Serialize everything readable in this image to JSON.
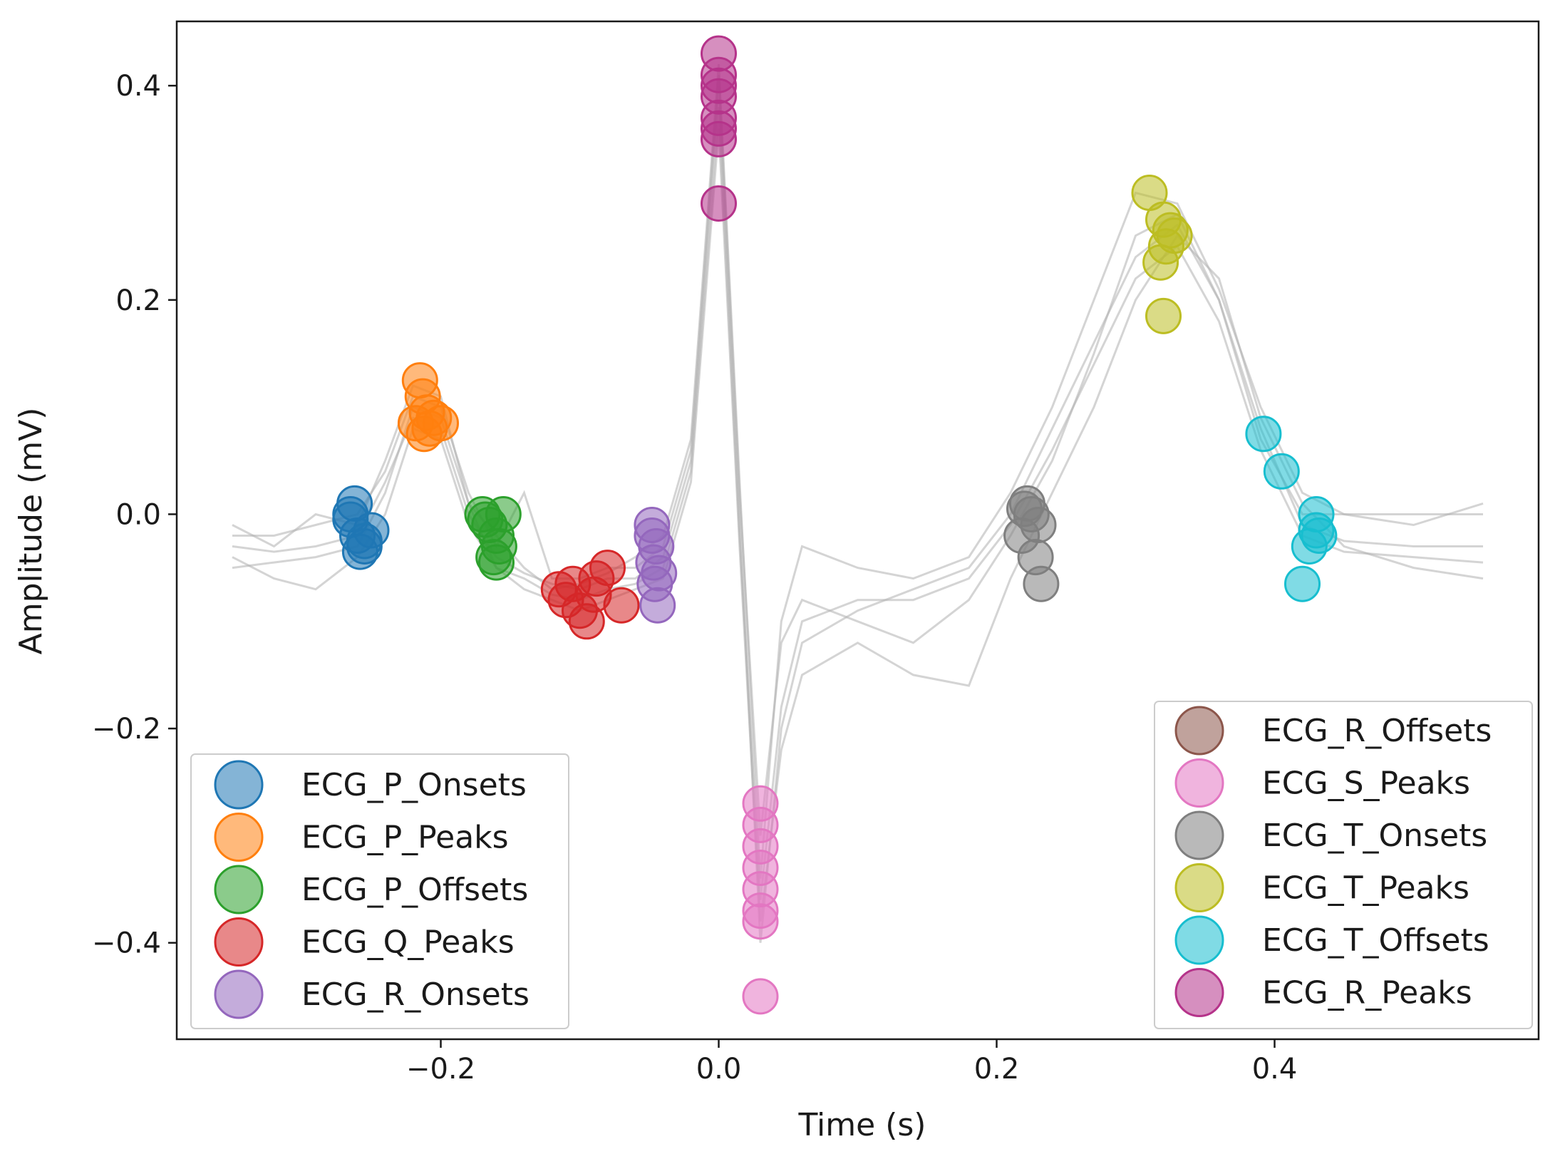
{
  "chart_data": {
    "type": "scatter",
    "title": "",
    "xlabel": "Time (s)",
    "ylabel": "Amplitude (mV)",
    "xlim": [
      -0.39,
      0.59
    ],
    "ylim": [
      -0.49,
      0.46
    ],
    "xticks": [
      -0.2,
      0.0,
      0.2,
      0.4
    ],
    "xtick_labels": [
      "−0.2",
      "0.0",
      "0.2",
      "0.4"
    ],
    "yticks": [
      0.4,
      0.2,
      0.0,
      -0.2,
      -0.4
    ],
    "ytick_labels": [
      "0.4",
      "0.2",
      "0.0",
      "−0.2",
      "−0.4"
    ],
    "legend_left": [
      "ECG_P_Onsets",
      "ECG_P_Peaks",
      "ECG_P_Offsets",
      "ECG_Q_Peaks",
      "ECG_R_Onsets"
    ],
    "legend_right": [
      "ECG_R_Offsets",
      "ECG_S_Peaks",
      "ECG_T_Onsets",
      "ECG_T_Peaks",
      "ECG_T_Offsets",
      "ECG_R_Peaks"
    ],
    "colors": {
      "ECG_P_Onsets": "#1f77b4",
      "ECG_P_Peaks": "#ff7f0e",
      "ECG_P_Offsets": "#2ca02c",
      "ECG_Q_Peaks": "#d62728",
      "ECG_R_Onsets": "#9467bd",
      "ECG_R_Offsets": "#8c564b",
      "ECG_S_Peaks": "#e377c2",
      "ECG_T_Onsets": "#7f7f7f",
      "ECG_T_Peaks": "#bcbd22",
      "ECG_T_Offsets": "#17becf",
      "ECG_R_Peaks": "#b5338a",
      "trace": "#b0b0b0"
    },
    "traces": [
      {
        "x": [
          -0.35,
          -0.32,
          -0.29,
          -0.26,
          -0.24,
          -0.22,
          -0.2,
          -0.18,
          -0.16,
          -0.14,
          -0.12,
          -0.1,
          -0.08,
          -0.06,
          -0.04,
          -0.02,
          0.0,
          0.015,
          0.03,
          0.045,
          0.06,
          0.1,
          0.14,
          0.18,
          0.21,
          0.24,
          0.27,
          0.3,
          0.33,
          0.36,
          0.39,
          0.42,
          0.45,
          0.5,
          0.55
        ],
        "y": [
          -0.03,
          -0.035,
          -0.03,
          -0.02,
          0.03,
          0.09,
          0.08,
          0.0,
          -0.04,
          -0.055,
          -0.065,
          -0.07,
          -0.06,
          -0.06,
          -0.04,
          0.05,
          0.4,
          0.0,
          -0.4,
          -0.2,
          -0.12,
          -0.09,
          -0.07,
          -0.05,
          0.0,
          0.08,
          0.16,
          0.24,
          0.27,
          0.2,
          0.08,
          -0.01,
          -0.025,
          -0.03,
          -0.03
        ]
      },
      {
        "x": [
          -0.35,
          -0.32,
          -0.29,
          -0.26,
          -0.24,
          -0.22,
          -0.2,
          -0.18,
          -0.16,
          -0.14,
          -0.12,
          -0.1,
          -0.08,
          -0.06,
          -0.04,
          -0.02,
          0.0,
          0.015,
          0.03,
          0.045,
          0.06,
          0.1,
          0.14,
          0.18,
          0.21,
          0.24,
          0.27,
          0.3,
          0.33,
          0.36,
          0.39,
          0.42,
          0.45,
          0.5,
          0.55
        ],
        "y": [
          -0.05,
          -0.045,
          -0.04,
          -0.03,
          0.02,
          0.1,
          0.09,
          0.01,
          -0.05,
          -0.06,
          -0.075,
          -0.08,
          -0.07,
          -0.065,
          -0.05,
          0.04,
          0.38,
          -0.02,
          -0.36,
          -0.18,
          -0.1,
          -0.08,
          -0.08,
          -0.06,
          -0.01,
          0.06,
          0.14,
          0.22,
          0.25,
          0.18,
          0.06,
          -0.02,
          -0.035,
          -0.04,
          -0.045
        ]
      },
      {
        "x": [
          -0.35,
          -0.32,
          -0.29,
          -0.26,
          -0.24,
          -0.22,
          -0.2,
          -0.18,
          -0.16,
          -0.14,
          -0.12,
          -0.1,
          -0.08,
          -0.06,
          -0.04,
          -0.02,
          0.0,
          0.015,
          0.03,
          0.045,
          0.06,
          0.1,
          0.14,
          0.18,
          0.21,
          0.24,
          0.27,
          0.3,
          0.33,
          0.36,
          0.39,
          0.42,
          0.45,
          0.5,
          0.55
        ],
        "y": [
          -0.02,
          -0.02,
          -0.01,
          0.0,
          0.04,
          0.11,
          0.1,
          0.02,
          -0.03,
          0.02,
          -0.06,
          -0.06,
          -0.05,
          -0.05,
          -0.03,
          0.06,
          0.41,
          0.02,
          -0.3,
          -0.12,
          -0.08,
          -0.1,
          -0.12,
          -0.08,
          -0.02,
          0.05,
          0.15,
          0.26,
          0.28,
          0.2,
          0.07,
          0.0,
          0.0,
          0.0,
          0.0
        ]
      },
      {
        "x": [
          -0.35,
          -0.32,
          -0.29,
          -0.26,
          -0.24,
          -0.22,
          -0.2,
          -0.18,
          -0.16,
          -0.14,
          -0.12,
          -0.1,
          -0.08,
          -0.06,
          -0.04,
          -0.02,
          0.0,
          0.015,
          0.03,
          0.045,
          0.06,
          0.1,
          0.14,
          0.18,
          0.21,
          0.24,
          0.27,
          0.3,
          0.33,
          0.36,
          0.39,
          0.42,
          0.45,
          0.5,
          0.55
        ],
        "y": [
          -0.04,
          -0.06,
          -0.07,
          -0.04,
          0.0,
          0.08,
          0.07,
          -0.01,
          -0.05,
          -0.07,
          -0.08,
          -0.09,
          -0.08,
          -0.07,
          -0.06,
          0.03,
          0.36,
          -0.03,
          -0.38,
          -0.22,
          -0.15,
          -0.12,
          -0.15,
          -0.16,
          -0.06,
          0.02,
          0.1,
          0.2,
          0.26,
          0.22,
          0.09,
          0.01,
          -0.03,
          -0.05,
          -0.06
        ]
      },
      {
        "x": [
          -0.35,
          -0.32,
          -0.29,
          -0.26,
          -0.24,
          -0.22,
          -0.2,
          -0.18,
          -0.16,
          -0.14,
          -0.12,
          -0.1,
          -0.08,
          -0.06,
          -0.04,
          -0.02,
          0.0,
          0.015,
          0.03,
          0.045,
          0.06,
          0.1,
          0.14,
          0.18,
          0.21,
          0.24,
          0.27,
          0.3,
          0.33,
          0.36,
          0.39,
          0.42,
          0.45,
          0.5,
          0.55
        ],
        "y": [
          -0.01,
          -0.03,
          0.0,
          -0.01,
          0.05,
          0.12,
          0.11,
          0.01,
          -0.02,
          -0.05,
          -0.07,
          -0.065,
          -0.055,
          -0.04,
          -0.02,
          0.07,
          0.42,
          0.03,
          -0.34,
          -0.1,
          -0.03,
          -0.05,
          -0.06,
          -0.04,
          0.02,
          0.1,
          0.2,
          0.3,
          0.29,
          0.21,
          0.1,
          0.02,
          0.0,
          -0.01,
          0.01
        ]
      }
    ],
    "series": [
      {
        "name": "ECG_P_Onsets",
        "x": [
          -0.265,
          -0.26,
          -0.255,
          -0.262,
          -0.258,
          -0.25,
          -0.265,
          -0.255
        ],
        "y": [
          0.0,
          -0.02,
          -0.03,
          0.01,
          -0.035,
          -0.015,
          -0.005,
          -0.025
        ]
      },
      {
        "name": "ECG_P_Peaks",
        "x": [
          -0.215,
          -0.213,
          -0.21,
          -0.218,
          -0.205,
          -0.2,
          -0.212,
          -0.208
        ],
        "y": [
          0.125,
          0.11,
          0.095,
          0.085,
          0.09,
          0.085,
          0.075,
          0.08
        ]
      },
      {
        "name": "ECG_P_Offsets",
        "x": [
          -0.17,
          -0.165,
          -0.16,
          -0.158,
          -0.162,
          -0.168,
          -0.155,
          -0.16
        ],
        "y": [
          0.0,
          -0.01,
          -0.02,
          -0.03,
          -0.04,
          -0.005,
          0.0,
          -0.045
        ]
      },
      {
        "name": "ECG_Q_Peaks",
        "x": [
          -0.115,
          -0.11,
          -0.1,
          -0.095,
          -0.088,
          -0.08,
          -0.07,
          -0.105,
          -0.09
        ],
        "y": [
          -0.07,
          -0.08,
          -0.09,
          -0.1,
          -0.06,
          -0.05,
          -0.085,
          -0.065,
          -0.075
        ]
      },
      {
        "name": "ECG_R_Onsets",
        "x": [
          -0.048,
          -0.045,
          -0.047,
          -0.043,
          -0.046,
          -0.044,
          -0.048
        ],
        "y": [
          -0.02,
          -0.03,
          -0.045,
          -0.055,
          -0.065,
          -0.085,
          -0.01
        ]
      },
      {
        "name": "ECG_R_Peaks",
        "x": [
          0.0,
          0.0,
          0.0,
          0.0,
          0.0,
          0.0,
          0.0,
          0.0
        ],
        "y": [
          0.43,
          0.41,
          0.4,
          0.39,
          0.37,
          0.36,
          0.35,
          0.29
        ]
      },
      {
        "name": "ECG_S_Peaks",
        "x": [
          0.03,
          0.03,
          0.03,
          0.03,
          0.03,
          0.03,
          0.03,
          0.03
        ],
        "y": [
          -0.27,
          -0.29,
          -0.31,
          -0.33,
          -0.35,
          -0.37,
          -0.38,
          -0.45
        ]
      },
      {
        "name": "ECG_T_Onsets",
        "x": [
          0.222,
          0.225,
          0.23,
          0.218,
          0.228,
          0.232,
          0.22
        ],
        "y": [
          0.01,
          0.0,
          -0.01,
          -0.02,
          -0.04,
          -0.065,
          0.005
        ]
      },
      {
        "name": "ECG_T_Peaks",
        "x": [
          0.31,
          0.32,
          0.325,
          0.328,
          0.322,
          0.318,
          0.32
        ],
        "y": [
          0.3,
          0.275,
          0.265,
          0.26,
          0.25,
          0.235,
          0.185
        ]
      },
      {
        "name": "ECG_T_Offsets",
        "x": [
          0.392,
          0.405,
          0.43,
          0.43,
          0.425,
          0.42,
          0.432
        ],
        "y": [
          0.075,
          0.04,
          0.0,
          -0.015,
          -0.03,
          -0.065,
          -0.02
        ]
      }
    ]
  }
}
